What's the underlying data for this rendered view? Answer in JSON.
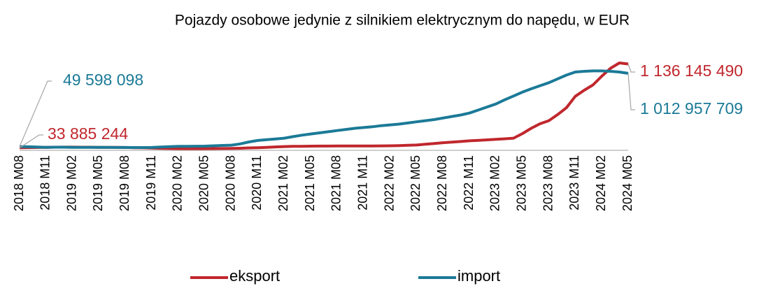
{
  "chart_data": {
    "type": "line",
    "title": "Pojazdy osobowe jedynie z silnikiem elektrycznym do napędu, w EUR",
    "categories": [
      "2018 M08",
      null,
      null,
      "2018 M11",
      null,
      null,
      "2019 M02",
      null,
      null,
      "2019 M05",
      null,
      null,
      "2019 M08",
      null,
      null,
      "2019 M11",
      null,
      null,
      "2020 M02",
      null,
      null,
      "2020 M05",
      null,
      null,
      "2020 M08",
      null,
      null,
      "2020 M11",
      null,
      null,
      "2021 M02",
      null,
      null,
      "2021 M05",
      null,
      null,
      "2021 M08",
      null,
      null,
      "2021 M11",
      null,
      null,
      "2022 M02",
      null,
      null,
      "2022 M05",
      null,
      null,
      "2022 M08",
      null,
      null,
      "2022 M11",
      null,
      null,
      "2023 M02",
      null,
      null,
      "2023 M05",
      null,
      null,
      "2023 M08",
      null,
      null,
      "2023 M11",
      null,
      null,
      "2024 M02",
      null,
      null,
      "2024 M05"
    ],
    "series": [
      {
        "name": "eksport",
        "color": "#c0272d",
        "values": [
          33885244,
          36000000,
          38000000,
          40000000,
          41000000,
          42000000,
          42000000,
          41000000,
          41000000,
          40000000,
          39000000,
          39000000,
          38000000,
          35000000,
          33000000,
          30000000,
          27000000,
          24000000,
          22000000,
          22000000,
          22000000,
          22000000,
          23000000,
          24000000,
          25000000,
          28000000,
          32000000,
          35000000,
          40000000,
          45000000,
          50000000,
          52000000,
          53000000,
          55000000,
          56000000,
          56000000,
          57000000,
          57000000,
          57000000,
          57000000,
          58000000,
          59000000,
          60000000,
          63000000,
          66000000,
          70000000,
          80000000,
          90000000,
          100000000,
          108000000,
          116000000,
          125000000,
          132000000,
          138000000,
          145000000,
          152000000,
          160000000,
          220000000,
          290000000,
          350000000,
          390000000,
          470000000,
          560000000,
          710000000,
          790000000,
          860000000,
          975000000,
          1080000000,
          1150000000,
          1136145490
        ],
        "value_labels": [
          "33 885 244",
          null,
          null,
          null,
          null,
          null,
          null,
          null,
          null,
          null,
          null,
          null,
          null,
          null,
          null,
          null,
          null,
          null,
          null,
          null,
          null,
          null,
          null,
          null,
          null,
          null,
          null,
          null,
          null,
          null,
          null,
          null,
          null,
          null,
          null,
          null,
          null,
          null,
          null,
          null,
          null,
          null,
          null,
          null,
          null,
          null,
          null,
          null,
          null,
          null,
          null,
          null,
          null,
          null,
          null,
          null,
          null,
          null,
          null,
          null,
          null,
          null,
          null,
          null,
          null,
          null,
          null,
          null,
          null,
          "1 136 145 490"
        ]
      },
      {
        "name": "import",
        "color": "#1b7a97",
        "values": [
          49598098,
          47000000,
          43000000,
          40000000,
          41000000,
          41000000,
          40000000,
          40000000,
          40000000,
          40000000,
          39000000,
          38000000,
          38000000,
          37000000,
          37000000,
          38000000,
          44000000,
          48000000,
          52000000,
          53000000,
          54000000,
          55000000,
          60000000,
          64000000,
          68000000,
          85000000,
          110000000,
          130000000,
          140000000,
          150000000,
          160000000,
          180000000,
          200000000,
          215000000,
          230000000,
          245000000,
          260000000,
          275000000,
          290000000,
          300000000,
          310000000,
          325000000,
          335000000,
          345000000,
          360000000,
          375000000,
          390000000,
          405000000,
          425000000,
          445000000,
          465000000,
          490000000,
          530000000,
          570000000,
          610000000,
          665000000,
          715000000,
          765000000,
          810000000,
          850000000,
          890000000,
          940000000,
          990000000,
          1030000000,
          1040000000,
          1045000000,
          1045000000,
          1040000000,
          1030000000,
          1012957709
        ],
        "value_labels": [
          "49 598 098",
          null,
          null,
          null,
          null,
          null,
          null,
          null,
          null,
          null,
          null,
          null,
          null,
          null,
          null,
          null,
          null,
          null,
          null,
          null,
          null,
          null,
          null,
          null,
          null,
          null,
          null,
          null,
          null,
          null,
          null,
          null,
          null,
          null,
          null,
          null,
          null,
          null,
          null,
          null,
          null,
          null,
          null,
          null,
          null,
          null,
          null,
          null,
          null,
          null,
          null,
          null,
          null,
          null,
          null,
          null,
          null,
          null,
          null,
          null,
          null,
          null,
          null,
          null,
          null,
          null,
          null,
          null,
          null,
          "1 012 957 709"
        ]
      }
    ]
  }
}
